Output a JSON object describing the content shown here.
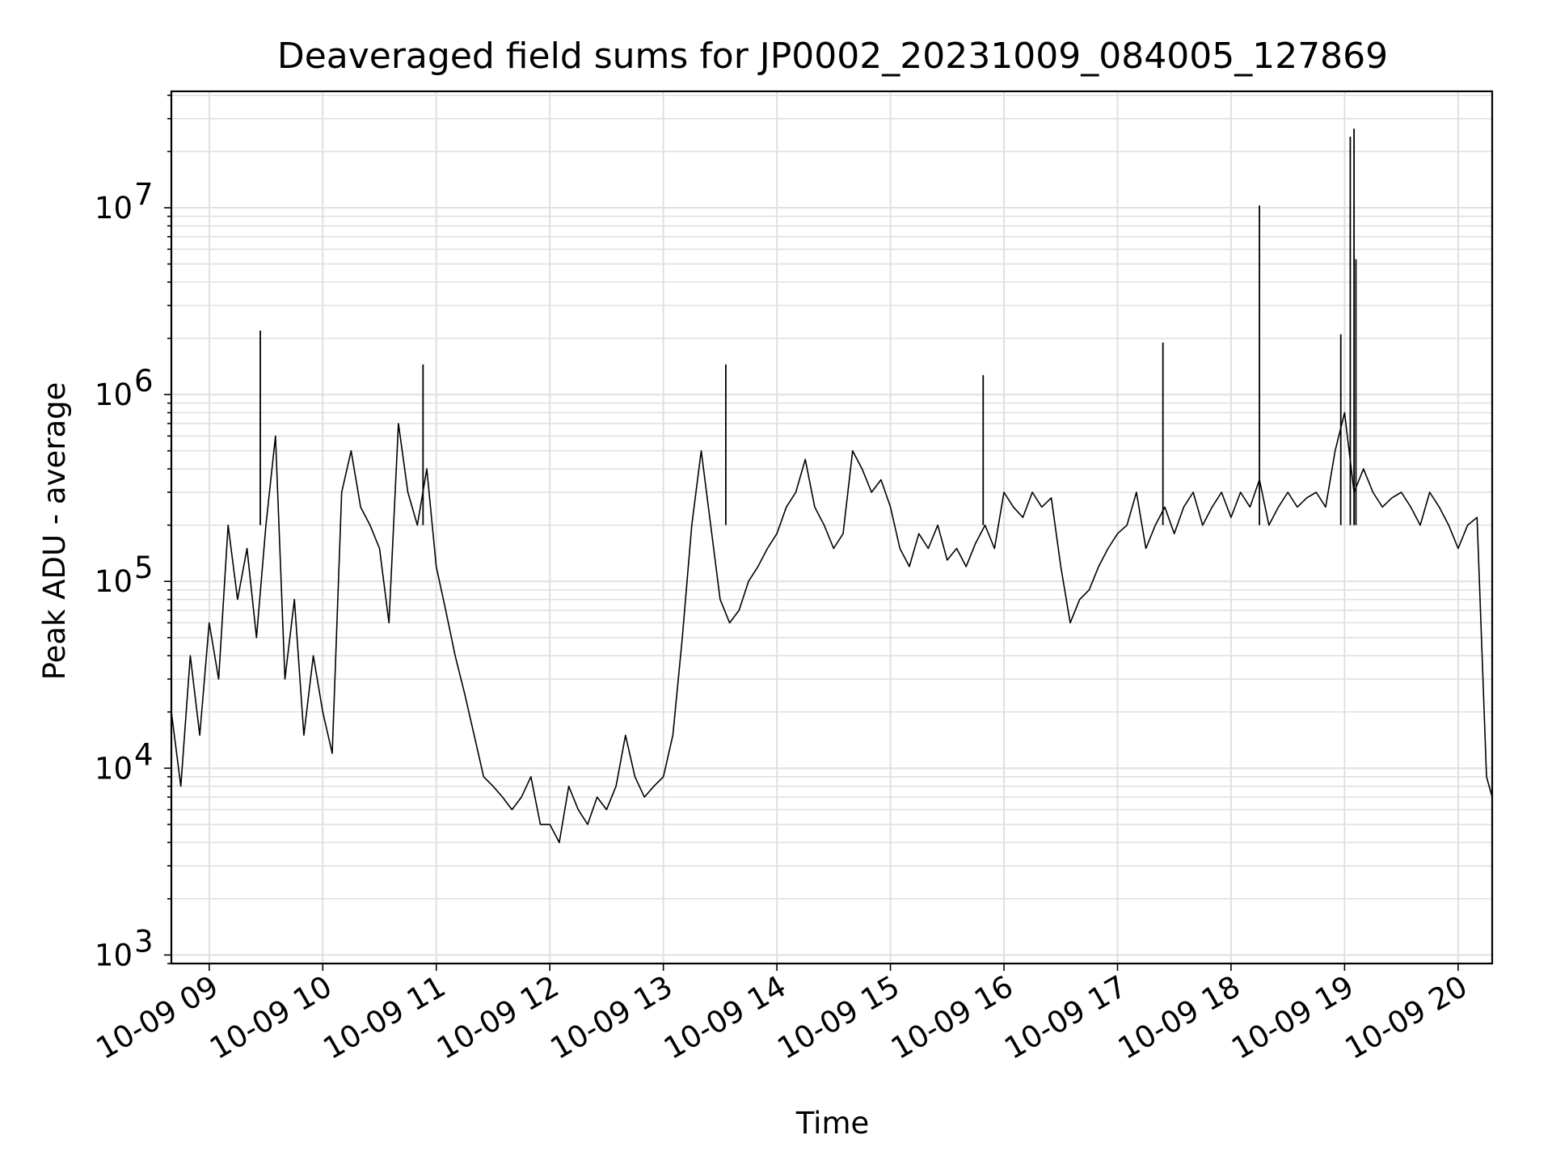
{
  "chart_data": {
    "type": "line",
    "title": "Deaveraged field sums for JP0002_20231009_084005_127869",
    "xlabel": "Time",
    "ylabel": "Peak ADU - average",
    "yscale": "log",
    "ylim": [
      900,
      42000000
    ],
    "xlim": [
      "2023-10-09 08:40",
      "2023-10-09 20:18"
    ],
    "grid": true,
    "line_color": "#000000",
    "grid_color": "#e0e0e0",
    "x_ticks": [
      {
        "t": "2023-10-09 09:00",
        "label": "10-09 09"
      },
      {
        "t": "2023-10-09 10:00",
        "label": "10-09 10"
      },
      {
        "t": "2023-10-09 11:00",
        "label": "10-09 11"
      },
      {
        "t": "2023-10-09 12:00",
        "label": "10-09 12"
      },
      {
        "t": "2023-10-09 13:00",
        "label": "10-09 13"
      },
      {
        "t": "2023-10-09 14:00",
        "label": "10-09 14"
      },
      {
        "t": "2023-10-09 15:00",
        "label": "10-09 15"
      },
      {
        "t": "2023-10-09 16:00",
        "label": "10-09 16"
      },
      {
        "t": "2023-10-09 17:00",
        "label": "10-09 17"
      },
      {
        "t": "2023-10-09 18:00",
        "label": "10-09 18"
      },
      {
        "t": "2023-10-09 19:00",
        "label": "10-09 19"
      },
      {
        "t": "2023-10-09 20:00",
        "label": "10-09 20"
      }
    ],
    "y_ticks": [
      {
        "value": 1000,
        "mantissa": "10",
        "exponent": "3"
      },
      {
        "value": 10000,
        "mantissa": "10",
        "exponent": "4"
      },
      {
        "value": 100000,
        "mantissa": "10",
        "exponent": "5"
      },
      {
        "value": 1000000,
        "mantissa": "10",
        "exponent": "6"
      },
      {
        "value": 10000000,
        "mantissa": "10",
        "exponent": "7"
      }
    ],
    "series": [
      {
        "x": [
          "2023-10-09 08:40",
          "2023-10-09 08:45",
          "2023-10-09 08:50",
          "2023-10-09 08:55",
          "2023-10-09 09:00",
          "2023-10-09 09:05",
          "2023-10-09 09:10",
          "2023-10-09 09:15",
          "2023-10-09 09:20",
          "2023-10-09 09:25",
          "2023-10-09 09:30",
          "2023-10-09 09:35",
          "2023-10-09 09:40",
          "2023-10-09 09:45",
          "2023-10-09 09:50",
          "2023-10-09 09:55",
          "2023-10-09 10:00",
          "2023-10-09 10:05",
          "2023-10-09 10:10",
          "2023-10-09 10:15",
          "2023-10-09 10:20",
          "2023-10-09 10:25",
          "2023-10-09 10:30",
          "2023-10-09 10:35",
          "2023-10-09 10:40",
          "2023-10-09 10:45",
          "2023-10-09 10:50",
          "2023-10-09 10:55",
          "2023-10-09 11:00",
          "2023-10-09 11:05",
          "2023-10-09 11:10",
          "2023-10-09 11:15",
          "2023-10-09 11:20",
          "2023-10-09 11:25",
          "2023-10-09 11:30",
          "2023-10-09 11:35",
          "2023-10-09 11:40",
          "2023-10-09 11:45",
          "2023-10-09 11:50",
          "2023-10-09 11:55",
          "2023-10-09 12:00",
          "2023-10-09 12:05",
          "2023-10-09 12:10",
          "2023-10-09 12:15",
          "2023-10-09 12:20",
          "2023-10-09 12:25",
          "2023-10-09 12:30",
          "2023-10-09 12:35",
          "2023-10-09 12:40",
          "2023-10-09 12:45",
          "2023-10-09 12:50",
          "2023-10-09 12:55",
          "2023-10-09 13:00",
          "2023-10-09 13:05",
          "2023-10-09 13:10",
          "2023-10-09 13:15",
          "2023-10-09 13:20",
          "2023-10-09 13:25",
          "2023-10-09 13:30",
          "2023-10-09 13:35",
          "2023-10-09 13:40",
          "2023-10-09 13:45",
          "2023-10-09 13:50",
          "2023-10-09 13:55",
          "2023-10-09 14:00",
          "2023-10-09 14:05",
          "2023-10-09 14:10",
          "2023-10-09 14:15",
          "2023-10-09 14:20",
          "2023-10-09 14:25",
          "2023-10-09 14:30",
          "2023-10-09 14:35",
          "2023-10-09 14:40",
          "2023-10-09 14:45",
          "2023-10-09 14:50",
          "2023-10-09 14:55",
          "2023-10-09 15:00",
          "2023-10-09 15:05",
          "2023-10-09 15:10",
          "2023-10-09 15:15",
          "2023-10-09 15:20",
          "2023-10-09 15:25",
          "2023-10-09 15:30",
          "2023-10-09 15:35",
          "2023-10-09 15:40",
          "2023-10-09 15:45",
          "2023-10-09 15:50",
          "2023-10-09 15:55",
          "2023-10-09 16:00",
          "2023-10-09 16:05",
          "2023-10-09 16:10",
          "2023-10-09 16:15",
          "2023-10-09 16:20",
          "2023-10-09 16:25",
          "2023-10-09 16:30",
          "2023-10-09 16:35",
          "2023-10-09 16:40",
          "2023-10-09 16:45",
          "2023-10-09 16:50",
          "2023-10-09 16:55",
          "2023-10-09 17:00",
          "2023-10-09 17:05",
          "2023-10-09 17:10",
          "2023-10-09 17:15",
          "2023-10-09 17:20",
          "2023-10-09 17:25",
          "2023-10-09 17:30",
          "2023-10-09 17:35",
          "2023-10-09 17:40",
          "2023-10-09 17:45",
          "2023-10-09 17:50",
          "2023-10-09 17:55",
          "2023-10-09 18:00",
          "2023-10-09 18:05",
          "2023-10-09 18:10",
          "2023-10-09 18:15",
          "2023-10-09 18:20",
          "2023-10-09 18:25",
          "2023-10-09 18:30",
          "2023-10-09 18:35",
          "2023-10-09 18:40",
          "2023-10-09 18:45",
          "2023-10-09 18:50",
          "2023-10-09 18:55",
          "2023-10-09 19:00",
          "2023-10-09 19:05",
          "2023-10-09 19:10",
          "2023-10-09 19:15",
          "2023-10-09 19:20",
          "2023-10-09 19:25",
          "2023-10-09 19:30",
          "2023-10-09 19:35",
          "2023-10-09 19:40",
          "2023-10-09 19:45",
          "2023-10-09 19:50",
          "2023-10-09 19:55",
          "2023-10-09 20:00",
          "2023-10-09 20:05",
          "2023-10-09 20:10",
          "2023-10-09 20:15",
          "2023-10-09 20:18"
        ],
        "values": [
          20000,
          8000,
          40000,
          15000,
          60000,
          30000,
          200000,
          80000,
          150000,
          50000,
          200000,
          600000,
          30000,
          80000,
          15000,
          40000,
          20000,
          12000,
          300000,
          500000,
          250000,
          200000,
          150000,
          60000,
          700000,
          300000,
          200000,
          400000,
          120000,
          70000,
          40000,
          25000,
          15000,
          9000,
          8000,
          7000,
          6000,
          7000,
          9000,
          5000,
          5000,
          4000,
          8000,
          6000,
          5000,
          7000,
          6000,
          8000,
          15000,
          9000,
          7000,
          8000,
          9000,
          15000,
          50000,
          200000,
          500000,
          200000,
          80000,
          60000,
          70000,
          100000,
          120000,
          150000,
          180000,
          250000,
          300000,
          450000,
          250000,
          200000,
          150000,
          180000,
          500000,
          400000,
          300000,
          350000,
          250000,
          150000,
          120000,
          180000,
          150000,
          200000,
          130000,
          150000,
          120000,
          160000,
          200000,
          150000,
          300000,
          250000,
          220000,
          300000,
          250000,
          280000,
          120000,
          60000,
          80000,
          90000,
          120000,
          150000,
          180000,
          200000,
          300000,
          150000,
          200000,
          250000,
          180000,
          250000,
          300000,
          200000,
          250000,
          300000,
          220000,
          300000,
          250000,
          350000,
          200000,
          250000,
          300000,
          250000,
          280000,
          300000,
          250000,
          500000,
          800000,
          300000,
          400000,
          300000,
          250000,
          280000,
          300000,
          250000,
          200000,
          300000,
          250000,
          200000,
          150000,
          200000,
          220000,
          9000,
          7000
        ]
      }
    ],
    "spikes": [
      {
        "t": "2023-10-09 09:27",
        "value": 2200000
      },
      {
        "t": "2023-10-09 10:53",
        "value": 1450000
      },
      {
        "t": "2023-10-09 13:33",
        "value": 1450000
      },
      {
        "t": "2023-10-09 15:49",
        "value": 1270000
      },
      {
        "t": "2023-10-09 17:24",
        "value": 1900000
      },
      {
        "t": "2023-10-09 18:15",
        "value": 10300000
      },
      {
        "t": "2023-10-09 18:58",
        "value": 2100000
      },
      {
        "t": "2023-10-09 19:03",
        "value": 24000000
      },
      {
        "t": "2023-10-09 19:05",
        "value": 26500000
      },
      {
        "t": "2023-10-09 19:06",
        "value": 5300000
      }
    ]
  }
}
